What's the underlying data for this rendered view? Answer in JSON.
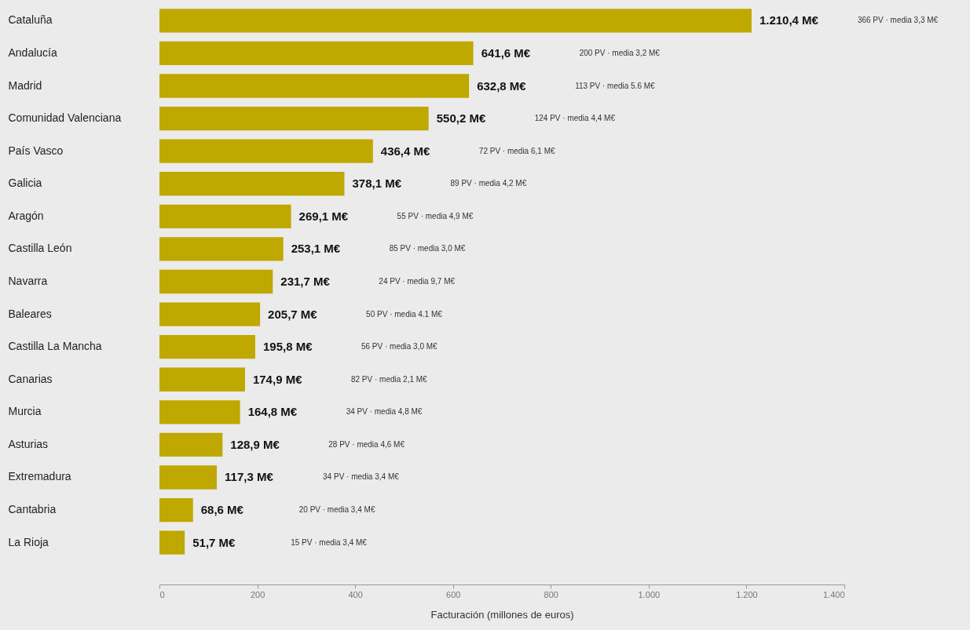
{
  "chart_data": {
    "type": "bar",
    "orientation": "horizontal",
    "xlabel": "Facturación (millones de euros)",
    "categories": [
      "Cataluña",
      "Andalucía",
      "Madrid",
      "Comunidad Valenciana",
      "País Vasco",
      "Galicia",
      "Aragón",
      "Castilla León",
      "Navarra",
      "Baleares",
      "Castilla La Mancha",
      "Canarias",
      "Murcia",
      "Asturias",
      "Extremadura",
      "Cantabria",
      "La Rioja"
    ],
    "values": [
      1210.4,
      641.6,
      632.8,
      550.2,
      436.4,
      378.1,
      269.1,
      253.1,
      231.7,
      205.7,
      195.8,
      174.9,
      164.8,
      128.9,
      117.3,
      68.6,
      51.7
    ],
    "value_labels": [
      "1.210,4 M€",
      "641,6 M€",
      "632,8 M€",
      "550,2 M€",
      "436,4 M€",
      "378,1 M€",
      "269,1 M€",
      "253,1 M€",
      "231,7 M€",
      "205,7 M€",
      "195,8 M€",
      "174,9 M€",
      "164,8 M€",
      "128,9 M€",
      "117,3 M€",
      "68,6 M€",
      "51,7 M€"
    ],
    "color": "#bfa800",
    "xlim": [
      0,
      1400
    ],
    "xticks": [
      0,
      200,
      400,
      600,
      800,
      {
        "value": 1000,
        "label": "1.000"
      },
      {
        "value": 1200,
        "label": "1.200"
      },
      {
        "value": 1400,
        "label": "1.400"
      }
    ],
    "grid": false,
    "annotations": [
      "366 PV · media 3,3 M€",
      "200 PV · media 3,2 M€",
      "113 PV · media 5.6 M€",
      "124 PV · media 4,4 M€",
      "72 PV · media 6,1 M€",
      "89 PV · media 4,2 M€",
      "55 PV · media 4,9 M€",
      "85 PV · media 3,0 M€",
      "24 PV · media 9,7 M€",
      "50 PV · media 4.1 M€",
      "56 PV · media 3,0 M€",
      "82 PV · media 2,1 M€",
      "34 PV · media 4,8 M€",
      "28 PV · media 4,6 M€",
      "34 PV · media 3,4 M€",
      "20 PV · media 3,4 M€",
      "15 PV · media 3,4 M€"
    ]
  }
}
